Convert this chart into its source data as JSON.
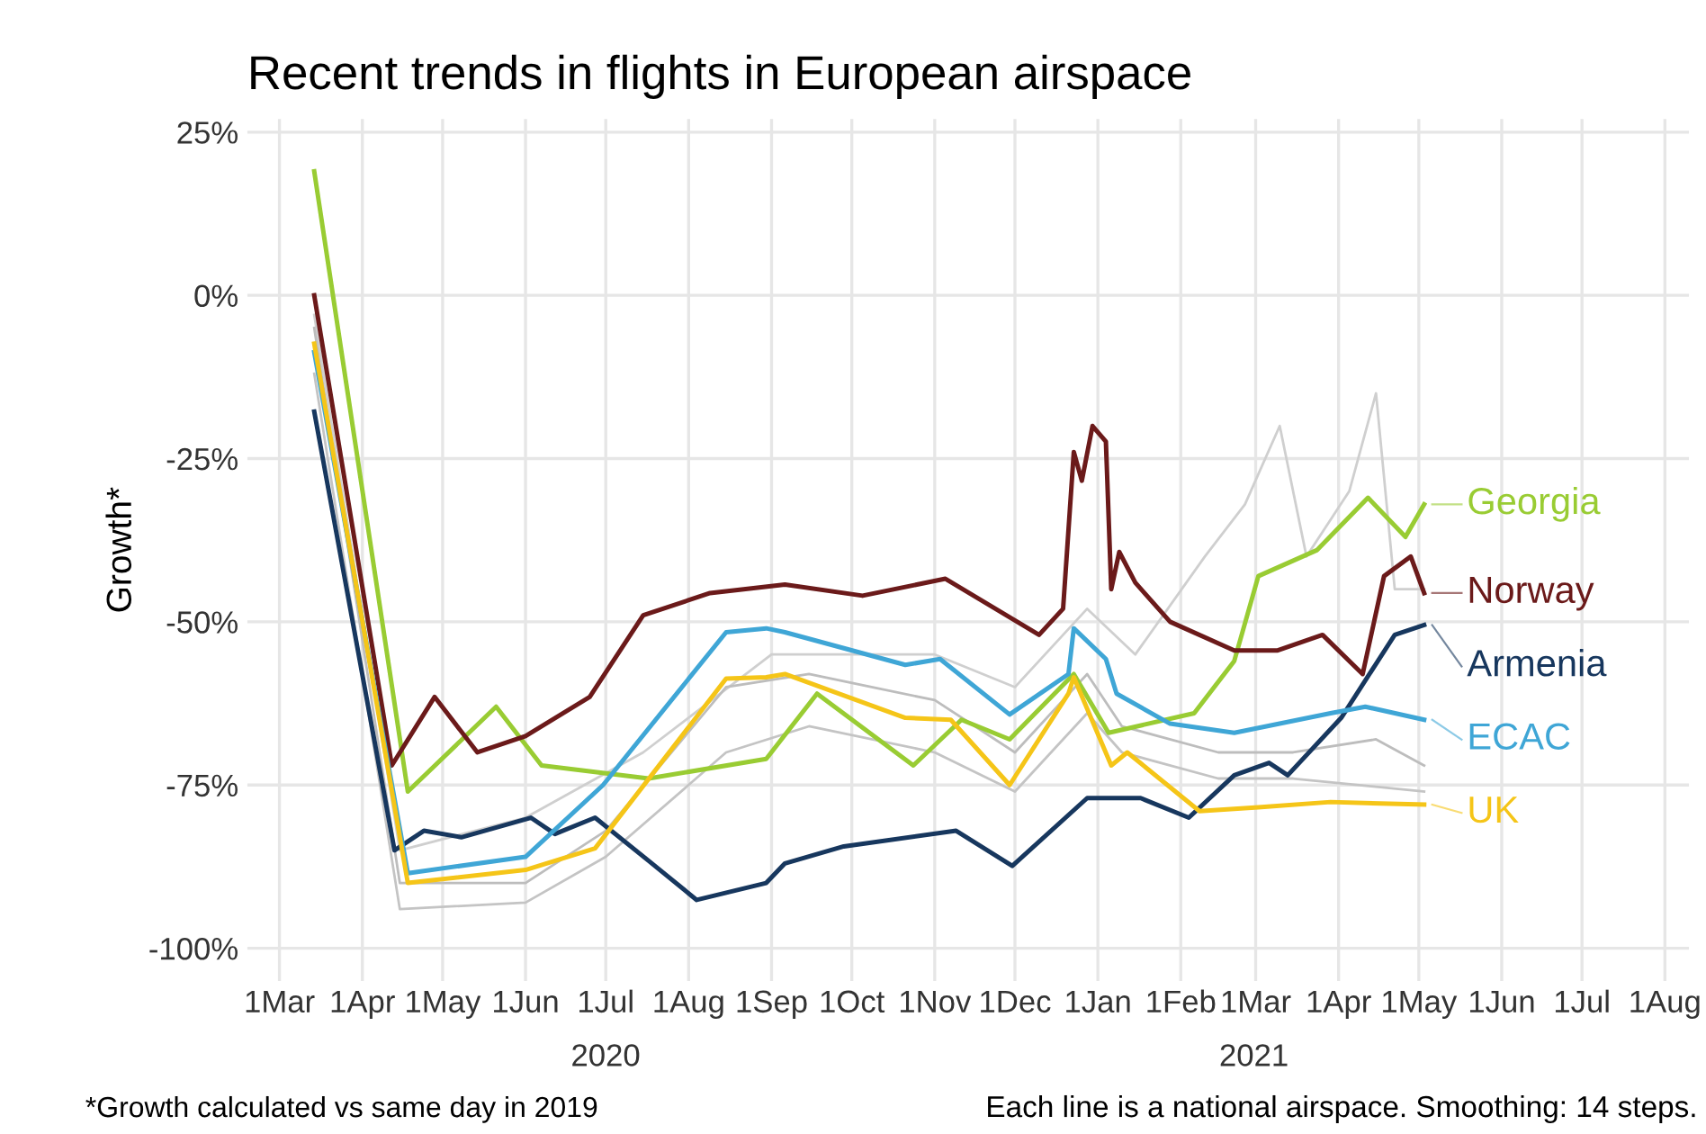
{
  "chart_data": {
    "type": "line",
    "title": "Recent trends in flights in European airspace",
    "ylabel": "Growth*",
    "series": [
      {
        "color": "#cfcfcf",
        "x": [
          "2020-03-14",
          "2020-04-15",
          "2020-06-01",
          "2020-07-15",
          "2020-09-01",
          "2020-11-01",
          "2020-12-01",
          "2020-12-28",
          "2021-01-15",
          "2021-02-10",
          "2021-02-25",
          "2021-03-10",
          "2021-03-20",
          "2021-04-05",
          "2021-04-15",
          "2021-04-22",
          "2021-05-03"
        ],
        "values": [
          -3,
          -85,
          -80,
          -70,
          -55,
          -55,
          -60,
          -48,
          -55,
          -40,
          -32,
          -20,
          -40,
          -30,
          -15,
          -45,
          -45
        ]
      },
      {
        "color": "#bdbdbd",
        "x": [
          "2020-03-14",
          "2020-04-15",
          "2020-06-01",
          "2020-07-01",
          "2020-08-15",
          "2020-09-15",
          "2020-11-01",
          "2020-12-01",
          "2020-12-28",
          "2021-01-10",
          "2021-02-15",
          "2021-03-15",
          "2021-04-15",
          "2021-05-03"
        ],
        "values": [
          -5,
          -90,
          -90,
          -82,
          -60,
          -58,
          -62,
          -70,
          -58,
          -66,
          -70,
          -70,
          -68,
          -72
        ]
      },
      {
        "color": "#c4c4c4",
        "x": [
          "2020-03-14",
          "2020-04-15",
          "2020-06-01",
          "2020-07-01",
          "2020-08-15",
          "2020-09-15",
          "2020-11-01",
          "2020-12-01",
          "2020-12-28",
          "2021-01-10",
          "2021-02-15",
          "2021-03-15",
          "2021-05-03"
        ],
        "values": [
          -12,
          -94,
          -93,
          -86,
          -70,
          -66,
          -70,
          -76,
          -64,
          -70,
          -74,
          -74,
          -76
        ]
      },
      {
        "name": "Georgia",
        "color": "#99cc33",
        "x": [
          "2020-03-14",
          "2020-04-18",
          "2020-05-21",
          "2020-06-07",
          "2020-07-17",
          "2020-08-30",
          "2020-09-18",
          "2020-10-24",
          "2020-11-11",
          "2020-11-29",
          "2020-12-23",
          "2021-01-05",
          "2021-02-06",
          "2021-02-21",
          "2021-03-02",
          "2021-03-24",
          "2021-04-12",
          "2021-04-26",
          "2021-05-03"
        ],
        "values": [
          19,
          -76,
          -63,
          -72,
          -74,
          -71,
          -61,
          -72,
          -65,
          -68,
          -58,
          -67,
          -64,
          -56,
          -43,
          -39,
          -31,
          -37,
          -32
        ]
      },
      {
        "name": "Norway",
        "color": "#6b1a1a",
        "x": [
          "2020-03-14",
          "2020-04-12",
          "2020-04-28",
          "2020-05-14",
          "2020-06-01",
          "2020-06-25",
          "2020-07-15",
          "2020-08-09",
          "2020-09-06",
          "2020-10-05",
          "2020-11-05",
          "2020-12-10",
          "2020-12-19",
          "2020-12-23",
          "2020-12-26",
          "2020-12-30",
          "2021-01-04",
          "2021-01-06",
          "2021-01-09",
          "2021-01-15",
          "2021-01-28",
          "2021-02-21",
          "2021-03-09",
          "2021-03-26",
          "2021-04-10",
          "2021-04-18",
          "2021-04-28",
          "2021-05-03"
        ],
        "values": [
          0,
          -72,
          -61.5,
          -70,
          -67.5,
          -61.5,
          -49,
          -45.6,
          -44.3,
          -46,
          -43.4,
          -52,
          -48,
          -24,
          -28.4,
          -20,
          -22.4,
          -45,
          -39.3,
          -44,
          -50,
          -54.4,
          -54.4,
          -52,
          -58,
          -43,
          -40,
          -45.6
        ]
      },
      {
        "name": "Armenia",
        "color": "#17375e",
        "x": [
          "2020-03-14",
          "2020-04-13",
          "2020-04-24",
          "2020-05-08",
          "2020-06-03",
          "2020-06-12",
          "2020-06-27",
          "2020-07-17",
          "2020-08-04",
          "2020-08-30",
          "2020-09-06",
          "2020-09-28",
          "2020-11-09",
          "2020-11-30",
          "2020-12-28",
          "2021-01-17",
          "2021-02-04",
          "2021-02-21",
          "2021-03-06",
          "2021-03-13",
          "2021-04-02",
          "2021-04-22",
          "2021-05-03"
        ],
        "values": [
          -17.8,
          -85,
          -82,
          -83,
          -80,
          -82.5,
          -80,
          -86.6,
          -92.6,
          -90,
          -87,
          -84.4,
          -82,
          -87.4,
          -77,
          -77,
          -80,
          -73.5,
          -71.6,
          -73.5,
          -64.7,
          -52,
          -50.5
        ]
      },
      {
        "name": "ECAC",
        "color": "#3fa6d6",
        "x": [
          "2020-03-14",
          "2020-04-18",
          "2020-06-01",
          "2020-06-30",
          "2020-08-15",
          "2020-08-30",
          "2020-09-06",
          "2020-10-21",
          "2020-11-03",
          "2020-11-29",
          "2020-12-21",
          "2020-12-23",
          "2021-01-04",
          "2021-01-08",
          "2021-01-28",
          "2021-02-21",
          "2021-03-29",
          "2021-04-11",
          "2021-05-03"
        ],
        "values": [
          -8.7,
          -88.5,
          -86,
          -75,
          -51.6,
          -51,
          -51.6,
          -56.6,
          -55.7,
          -64.2,
          -58,
          -51,
          -55.7,
          -61,
          -65.6,
          -67,
          -64,
          -63,
          -65
        ]
      },
      {
        "name": "UK",
        "color": "#f5c518",
        "x": [
          "2020-03-14",
          "2020-04-18",
          "2020-06-01",
          "2020-06-27",
          "2020-08-15",
          "2020-08-30",
          "2020-09-06",
          "2020-10-21",
          "2020-11-07",
          "2020-11-29",
          "2020-12-21",
          "2020-12-23",
          "2021-01-06",
          "2021-01-12",
          "2021-02-08",
          "2021-03-02",
          "2021-03-29",
          "2021-05-03"
        ],
        "values": [
          -7.4,
          -90,
          -88,
          -84.7,
          -58.7,
          -58.5,
          -58,
          -64.7,
          -65,
          -75,
          -61,
          -58.5,
          -72,
          -70,
          -79,
          -78.4,
          -77.6,
          -78
        ]
      }
    ],
    "xlim": [
      "2020-02-18",
      "2021-08-10"
    ],
    "xticks": [
      {
        "value": "2020-03-01",
        "label": "1Mar"
      },
      {
        "value": "2020-04-01",
        "label": "1Apr"
      },
      {
        "value": "2020-05-01",
        "label": "1May"
      },
      {
        "value": "2020-06-01",
        "label": "1Jun"
      },
      {
        "value": "2020-07-01",
        "label": "1Jul"
      },
      {
        "value": "2020-08-01",
        "label": "1Aug"
      },
      {
        "value": "2020-09-01",
        "label": "1Sep"
      },
      {
        "value": "2020-10-01",
        "label": "1Oct"
      },
      {
        "value": "2020-11-01",
        "label": "1Nov"
      },
      {
        "value": "2020-12-01",
        "label": "1Dec"
      },
      {
        "value": "2021-01-01",
        "label": "1Jan"
      },
      {
        "value": "2021-02-01",
        "label": "1Feb"
      },
      {
        "value": "2021-03-01",
        "label": "1Mar"
      },
      {
        "value": "2021-04-01",
        "label": "1Apr"
      },
      {
        "value": "2021-05-01",
        "label": "1May"
      },
      {
        "value": "2021-06-01",
        "label": "1Jun"
      },
      {
        "value": "2021-07-01",
        "label": "1Jul"
      },
      {
        "value": "2021-08-01",
        "label": "1Aug"
      }
    ],
    "ylim": [
      -105,
      27
    ],
    "yticks": [
      {
        "value": 25,
        "label": "25%"
      },
      {
        "value": 0,
        "label": "0%"
      },
      {
        "value": -25,
        "label": "-25%"
      },
      {
        "value": -50,
        "label": "-50%"
      },
      {
        "value": -75,
        "label": "-75%"
      },
      {
        "value": -100,
        "label": "-100%"
      }
    ],
    "grid": true,
    "legend": "right",
    "line_style": "solid",
    "marker": "none",
    "annotations": [
      "2020",
      "2021",
      "*Growth calculated vs same day in 2019",
      "Each line is a national airspace. Smoothing: 14 steps."
    ]
  }
}
